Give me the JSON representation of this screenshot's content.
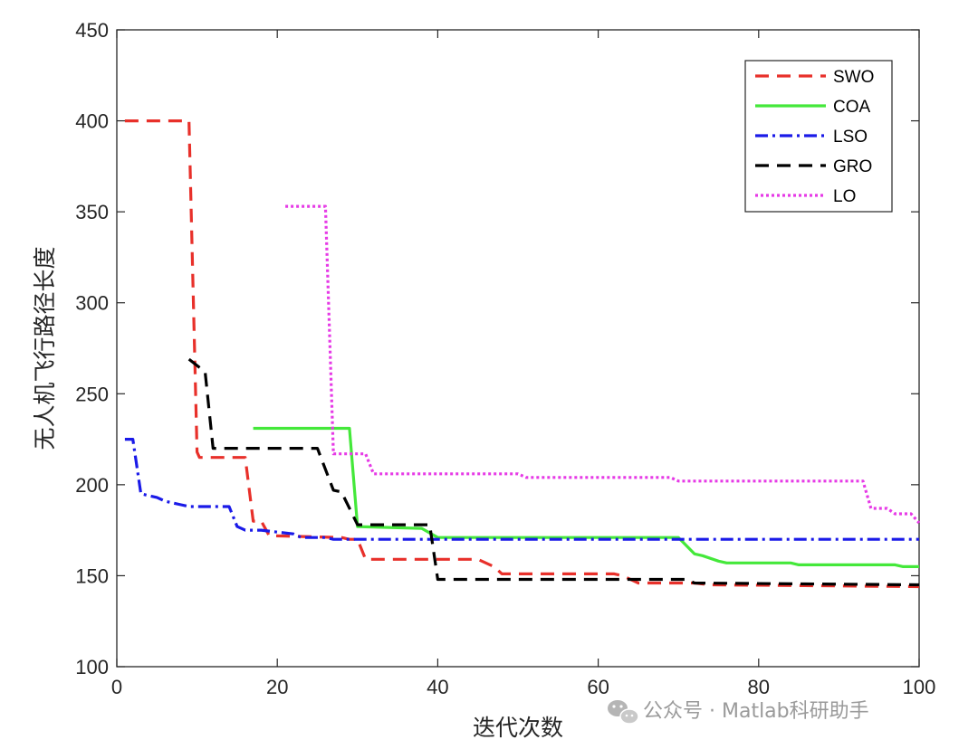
{
  "chart_data": {
    "type": "line",
    "title": "",
    "xlabel": "迭代次数",
    "ylabel": "无人机飞行路径长度",
    "xlim": [
      0,
      100
    ],
    "ylim": [
      100,
      450
    ],
    "xticks": [
      0,
      20,
      40,
      60,
      80,
      100
    ],
    "yticks": [
      100,
      150,
      200,
      250,
      300,
      350,
      400,
      450
    ],
    "grid": false,
    "legend_position": "top-right",
    "series": [
      {
        "name": "SWO",
        "color": "#e8302a",
        "dash": "dashed",
        "points": [
          [
            1,
            400
          ],
          [
            9,
            400
          ],
          [
            10,
            218
          ],
          [
            10.3,
            215
          ],
          [
            16,
            215
          ],
          [
            17,
            180
          ],
          [
            18,
            180
          ],
          [
            19,
            172
          ],
          [
            28,
            171
          ],
          [
            29,
            170
          ],
          [
            30,
            170
          ],
          [
            31,
            159
          ],
          [
            45,
            159
          ],
          [
            47,
            155
          ],
          [
            48,
            151
          ],
          [
            62,
            151
          ],
          [
            63,
            150
          ],
          [
            65,
            146
          ],
          [
            70,
            146
          ],
          [
            72,
            146
          ],
          [
            74,
            145
          ],
          [
            100,
            144
          ]
        ]
      },
      {
        "name": "COA",
        "color": "#44e83a",
        "dash": "solid",
        "points": [
          [
            17,
            231
          ],
          [
            29,
            231
          ],
          [
            30,
            177
          ],
          [
            38,
            176
          ],
          [
            40,
            171
          ],
          [
            70,
            171
          ],
          [
            72,
            162
          ],
          [
            73,
            161
          ],
          [
            75,
            158
          ],
          [
            76,
            157
          ],
          [
            84,
            157
          ],
          [
            85,
            156
          ],
          [
            97,
            156
          ],
          [
            98,
            155
          ],
          [
            100,
            155
          ]
        ]
      },
      {
        "name": "LSO",
        "color": "#1a1ae8",
        "dash": "dashdot",
        "points": [
          [
            1,
            225
          ],
          [
            2,
            225
          ],
          [
            3,
            195
          ],
          [
            4,
            194
          ],
          [
            5,
            193
          ],
          [
            6,
            191
          ],
          [
            8,
            189
          ],
          [
            9,
            188
          ],
          [
            14,
            188
          ],
          [
            15,
            177
          ],
          [
            16,
            175
          ],
          [
            18,
            175
          ],
          [
            20,
            174
          ],
          [
            22,
            173
          ],
          [
            23,
            171
          ],
          [
            26,
            171
          ],
          [
            27,
            170
          ],
          [
            100,
            170
          ]
        ]
      },
      {
        "name": "GRO",
        "color": "#000000",
        "dash": "dashed",
        "points": [
          [
            9,
            269
          ],
          [
            11,
            262
          ],
          [
            12,
            220
          ],
          [
            25,
            220
          ],
          [
            27,
            197
          ],
          [
            28,
            196
          ],
          [
            30,
            178
          ],
          [
            39,
            178
          ],
          [
            40,
            148
          ],
          [
            41,
            148
          ],
          [
            69,
            148
          ],
          [
            71,
            148
          ],
          [
            72,
            146
          ],
          [
            100,
            145
          ]
        ]
      },
      {
        "name": "LO",
        "color": "#e63ae6",
        "dash": "dotted",
        "points": [
          [
            21,
            353
          ],
          [
            26,
            353
          ],
          [
            27,
            217
          ],
          [
            31,
            217
          ],
          [
            32,
            206
          ],
          [
            50,
            206
          ],
          [
            51,
            204
          ],
          [
            69,
            204
          ],
          [
            70,
            202
          ],
          [
            93,
            202
          ],
          [
            94,
            187
          ],
          [
            96,
            187
          ],
          [
            97,
            184
          ],
          [
            99,
            184
          ],
          [
            100,
            179
          ]
        ]
      }
    ]
  },
  "watermark": {
    "icon": "wechat-icon",
    "text": "公众号 · Matlab科研助手"
  }
}
